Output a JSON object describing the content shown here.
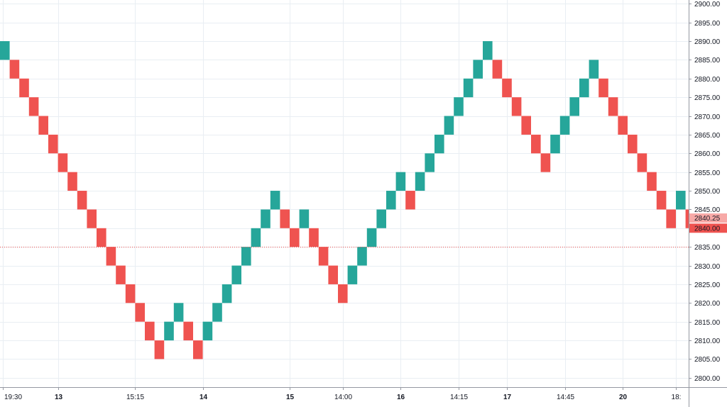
{
  "chart_data": {
    "type": "renko",
    "box_size": 5,
    "ylim": [
      2797.5,
      2901
    ],
    "y_ticks": [
      2800,
      2805,
      2810,
      2815,
      2820,
      2825,
      2830,
      2835,
      2840,
      2845,
      2850,
      2855,
      2860,
      2865,
      2870,
      2875,
      2880,
      2885,
      2890,
      2895,
      2900
    ],
    "y_tick_labels": [
      "2800.00",
      "2805.00",
      "2810.00",
      "2815.00",
      "2820.00",
      "2825.00",
      "2830.00",
      "2835.00",
      "2840.00",
      "2845.00",
      "2850.00",
      "2855.00",
      "2860.00",
      "2865.00",
      "2870.00",
      "2875.00",
      "2880.00",
      "2885.00",
      "2890.00",
      "2895.00",
      "2900.00"
    ],
    "x_ticks": [
      {
        "brick": 0.3,
        "label": "19:30",
        "bold": false
      },
      {
        "brick": 6.0,
        "label": "13",
        "bold": true
      },
      {
        "brick": 14.0,
        "label": "15:15",
        "bold": false
      },
      {
        "brick": 21.0,
        "label": "14",
        "bold": true
      },
      {
        "brick": 30.0,
        "label": "15",
        "bold": true
      },
      {
        "brick": 35.5,
        "label": "14:00",
        "bold": false
      },
      {
        "brick": 41.5,
        "label": "16",
        "bold": true
      },
      {
        "brick": 47.5,
        "label": "14:15",
        "bold": false
      },
      {
        "brick": 52.5,
        "label": "17",
        "bold": true
      },
      {
        "brick": 58.5,
        "label": "14:45",
        "bold": false
      },
      {
        "brick": 64.5,
        "label": "20",
        "bold": true
      },
      {
        "brick": 70.0,
        "label": "18:",
        "bold": false
      }
    ],
    "bricks": [
      {
        "low": 2885,
        "high": 2890,
        "dir": "up"
      },
      {
        "low": 2880,
        "high": 2885,
        "dir": "down"
      },
      {
        "low": 2875,
        "high": 2880,
        "dir": "down"
      },
      {
        "low": 2870,
        "high": 2875,
        "dir": "down"
      },
      {
        "low": 2865,
        "high": 2870,
        "dir": "down"
      },
      {
        "low": 2860,
        "high": 2865,
        "dir": "down"
      },
      {
        "low": 2855,
        "high": 2860,
        "dir": "down"
      },
      {
        "low": 2850,
        "high": 2855,
        "dir": "down"
      },
      {
        "low": 2845,
        "high": 2850,
        "dir": "down"
      },
      {
        "low": 2840,
        "high": 2845,
        "dir": "down"
      },
      {
        "low": 2835,
        "high": 2840,
        "dir": "down"
      },
      {
        "low": 2830,
        "high": 2835,
        "dir": "down"
      },
      {
        "low": 2825,
        "high": 2830,
        "dir": "down"
      },
      {
        "low": 2820,
        "high": 2825,
        "dir": "down"
      },
      {
        "low": 2815,
        "high": 2820,
        "dir": "down"
      },
      {
        "low": 2810,
        "high": 2815,
        "dir": "down"
      },
      {
        "low": 2805,
        "high": 2810,
        "dir": "down"
      },
      {
        "low": 2810,
        "high": 2815,
        "dir": "up"
      },
      {
        "low": 2815,
        "high": 2820,
        "dir": "up"
      },
      {
        "low": 2810,
        "high": 2815,
        "dir": "down"
      },
      {
        "low": 2805,
        "high": 2810,
        "dir": "down"
      },
      {
        "low": 2810,
        "high": 2815,
        "dir": "up"
      },
      {
        "low": 2815,
        "high": 2820,
        "dir": "up"
      },
      {
        "low": 2820,
        "high": 2825,
        "dir": "up"
      },
      {
        "low": 2825,
        "high": 2830,
        "dir": "up"
      },
      {
        "low": 2830,
        "high": 2835,
        "dir": "up"
      },
      {
        "low": 2835,
        "high": 2840,
        "dir": "up"
      },
      {
        "low": 2840,
        "high": 2845,
        "dir": "up"
      },
      {
        "low": 2845,
        "high": 2850,
        "dir": "up"
      },
      {
        "low": 2840,
        "high": 2845,
        "dir": "down"
      },
      {
        "low": 2835,
        "high": 2840,
        "dir": "down"
      },
      {
        "low": 2840,
        "high": 2845,
        "dir": "up"
      },
      {
        "low": 2835,
        "high": 2840,
        "dir": "down"
      },
      {
        "low": 2830,
        "high": 2835,
        "dir": "down"
      },
      {
        "low": 2825,
        "high": 2830,
        "dir": "down"
      },
      {
        "low": 2820,
        "high": 2825,
        "dir": "down"
      },
      {
        "low": 2825,
        "high": 2830,
        "dir": "up"
      },
      {
        "low": 2830,
        "high": 2835,
        "dir": "up"
      },
      {
        "low": 2835,
        "high": 2840,
        "dir": "up"
      },
      {
        "low": 2840,
        "high": 2845,
        "dir": "up"
      },
      {
        "low": 2845,
        "high": 2850,
        "dir": "up"
      },
      {
        "low": 2850,
        "high": 2855,
        "dir": "up"
      },
      {
        "low": 2845,
        "high": 2850,
        "dir": "down"
      },
      {
        "low": 2850,
        "high": 2855,
        "dir": "up"
      },
      {
        "low": 2855,
        "high": 2860,
        "dir": "up"
      },
      {
        "low": 2860,
        "high": 2865,
        "dir": "up"
      },
      {
        "low": 2865,
        "high": 2870,
        "dir": "up"
      },
      {
        "low": 2870,
        "high": 2875,
        "dir": "up"
      },
      {
        "low": 2875,
        "high": 2880,
        "dir": "up"
      },
      {
        "low": 2880,
        "high": 2885,
        "dir": "up"
      },
      {
        "low": 2885,
        "high": 2890,
        "dir": "up"
      },
      {
        "low": 2880,
        "high": 2885,
        "dir": "down"
      },
      {
        "low": 2875,
        "high": 2880,
        "dir": "down"
      },
      {
        "low": 2870,
        "high": 2875,
        "dir": "down"
      },
      {
        "low": 2865,
        "high": 2870,
        "dir": "down"
      },
      {
        "low": 2860,
        "high": 2865,
        "dir": "down"
      },
      {
        "low": 2855,
        "high": 2860,
        "dir": "down"
      },
      {
        "low": 2860,
        "high": 2865,
        "dir": "up"
      },
      {
        "low": 2865,
        "high": 2870,
        "dir": "up"
      },
      {
        "low": 2870,
        "high": 2875,
        "dir": "up"
      },
      {
        "low": 2875,
        "high": 2880,
        "dir": "up"
      },
      {
        "low": 2880,
        "high": 2885,
        "dir": "up"
      },
      {
        "low": 2875,
        "high": 2880,
        "dir": "down"
      },
      {
        "low": 2870,
        "high": 2875,
        "dir": "down"
      },
      {
        "low": 2865,
        "high": 2870,
        "dir": "down"
      },
      {
        "low": 2860,
        "high": 2865,
        "dir": "down"
      },
      {
        "low": 2855,
        "high": 2860,
        "dir": "down"
      },
      {
        "low": 2850,
        "high": 2855,
        "dir": "down"
      },
      {
        "low": 2845,
        "high": 2850,
        "dir": "down"
      },
      {
        "low": 2840,
        "high": 2845,
        "dir": "down"
      },
      {
        "low": 2845,
        "high": 2850,
        "dir": "up"
      },
      {
        "low": 2840,
        "high": 2845,
        "dir": "down"
      }
    ],
    "dotted_line_value": 2835,
    "price_labels": [
      {
        "value": 2840.25,
        "text": "2840.25",
        "style": "light"
      },
      {
        "value": 2840.0,
        "text": "2840.00",
        "style": "dark"
      }
    ],
    "colors": {
      "up": "#26a69a",
      "down": "#ef5350",
      "grid": "#e9eef3",
      "axis_line": "#9598a1",
      "dotted_line": "#ef5350",
      "price_label_dark_bg": "#ef5350",
      "price_label_light_bg": "#f7a9a7",
      "label_text": "#131722"
    },
    "grid": true
  }
}
